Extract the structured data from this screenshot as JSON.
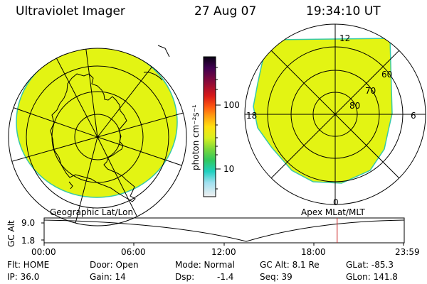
{
  "header": {
    "instrument": "Ultraviolet Imager",
    "date": "27 Aug 07",
    "time": "19:34:10 UT"
  },
  "colorbar": {
    "unit_label": "photon cm⁻²s⁻¹",
    "tick_labels": [
      "100",
      "10"
    ]
  },
  "left_panel": {
    "label": "Geographic Lat/Lon"
  },
  "right_panel": {
    "label": "Apex MLat/MLT",
    "mlt_labels": {
      "top": "12",
      "left": "18",
      "right": "6",
      "bottom": "0"
    },
    "lat_labels": [
      "60",
      "70",
      "80"
    ]
  },
  "timeline": {
    "axis_label": "GC Alt",
    "y_labels": [
      "9.0",
      "1.8"
    ],
    "time_ticks": [
      "00:00",
      "06:00",
      "12:00",
      "18:00",
      "23:59"
    ],
    "current_time_fraction": 0.8154
  },
  "info": {
    "col1": [
      "Flt: HOME",
      "IP: 36.0"
    ],
    "col2": [
      "Door: Open",
      "Gain: 14"
    ],
    "col3a": [
      "Mode: Normal",
      "Dsp:"
    ],
    "col3b": [
      "",
      "-1.4"
    ],
    "col4": [
      "GC Alt: 8.1 Re",
      "Seq: 39"
    ],
    "col5": [
      "GLat: -85.3",
      "GLon: 141.8"
    ]
  },
  "colors": {
    "emission": "#e3f413",
    "emission_edge": "#36c9a8",
    "timeline_marker": "#cc2222"
  }
}
